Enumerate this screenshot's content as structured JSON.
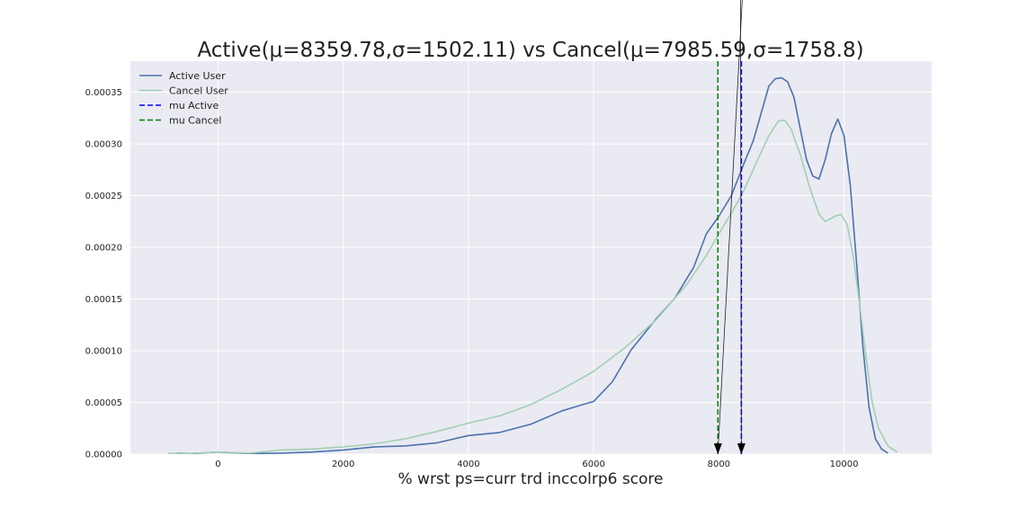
{
  "chart_data": {
    "type": "line",
    "title": "Active(μ=8359.78,σ=1502.11) vs Cancel(μ=7985.59,σ=1758.8)",
    "xlabel": "% wrst ps=curr trd inccolrp6 score",
    "ylabel": "",
    "xlim": [
      -1400,
      11400
    ],
    "ylim": [
      0,
      0.00038
    ],
    "x_ticks": [
      0,
      2000,
      4000,
      6000,
      8000,
      10000
    ],
    "x_tick_labels": [
      "0",
      "2000",
      "4000",
      "6000",
      "8000",
      "10000"
    ],
    "y_ticks": [
      0,
      5e-05,
      0.0001,
      0.00015,
      0.0002,
      0.00025,
      0.0003,
      0.00035
    ],
    "y_tick_labels": [
      "0.00000",
      "0.00005",
      "0.00010",
      "0.00015",
      "0.00020",
      "0.00025",
      "0.00030",
      "0.00035"
    ],
    "grid": true,
    "legend_position": "top-left",
    "series": [
      {
        "name": "Active User",
        "color": "#4c72b0",
        "style": "solid",
        "x": [
          -650,
          -400,
          0,
          500,
          1000,
          1500,
          2000,
          2500,
          3000,
          3500,
          4000,
          4500,
          5000,
          5500,
          6000,
          6300,
          6600,
          7000,
          7300,
          7600,
          7800,
          8000,
          8200,
          8400,
          8550,
          8700,
          8800,
          8900,
          9000,
          9100,
          9200,
          9300,
          9400,
          9500,
          9600,
          9700,
          9800,
          9900,
          9950,
          10000,
          10100,
          10200,
          10300,
          10400,
          10500,
          10600,
          10700
        ],
        "y": [
          1e-06,
          5e-07,
          2e-06,
          5e-07,
          1e-06,
          2e-06,
          4e-06,
          7e-06,
          8e-06,
          1.1e-05,
          1.8e-05,
          2.1e-05,
          2.9e-05,
          4.2e-05,
          5.1e-05,
          7e-05,
          0.000101,
          0.000131,
          0.000151,
          0.000181,
          0.000213,
          0.00023,
          0.00025,
          0.000281,
          0.000303,
          0.000335,
          0.000356,
          0.000363,
          0.000364,
          0.00036,
          0.000345,
          0.000315,
          0.000285,
          0.000269,
          0.000266,
          0.000285,
          0.00031,
          0.000324,
          0.000316,
          0.000308,
          0.00026,
          0.000185,
          0.000105,
          4.5e-05,
          1.5e-05,
          5e-06,
          1e-06
        ]
      },
      {
        "name": "Cancel User",
        "color": "#a2cfb3",
        "style": "solid",
        "x": [
          -800,
          -500,
          0,
          500,
          1000,
          1500,
          2000,
          2500,
          3000,
          3500,
          4000,
          4500,
          5000,
          5500,
          6000,
          6500,
          7000,
          7500,
          7800,
          8000,
          8200,
          8400,
          8600,
          8800,
          8950,
          9050,
          9150,
          9300,
          9450,
          9600,
          9700,
          9850,
          9950,
          10050,
          10150,
          10250,
          10350,
          10450,
          10550,
          10700,
          10850
        ],
        "y": [
          1e-06,
          5e-07,
          2e-06,
          1e-06,
          4e-06,
          5e-06,
          7e-06,
          1e-05,
          1.5e-05,
          2.2e-05,
          3e-05,
          3.7e-05,
          4.8e-05,
          6.3e-05,
          8e-05,
          0.000103,
          0.00013,
          0.000165,
          0.000192,
          0.000213,
          0.000233,
          0.000255,
          0.000282,
          0.000308,
          0.000322,
          0.000323,
          0.000315,
          0.00029,
          0.000258,
          0.000232,
          0.000225,
          0.00023,
          0.000232,
          0.000222,
          0.00019,
          0.000145,
          9.5e-05,
          5e-05,
          2.5e-05,
          8e-06,
          2e-06
        ]
      },
      {
        "name": "mu Active",
        "color": "#0000ff",
        "style": "dashed",
        "x_value": 8359.78
      },
      {
        "name": "mu Cancel",
        "color": "#008000",
        "style": "dashed",
        "x_value": 7985.59
      }
    ]
  }
}
